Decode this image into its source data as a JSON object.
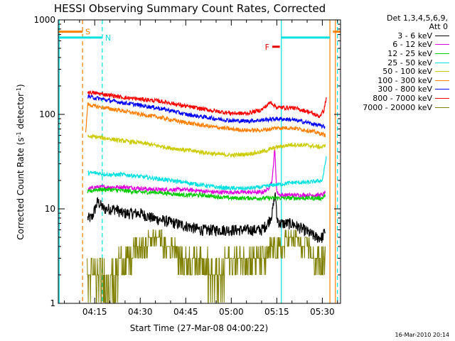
{
  "chart_data": {
    "type": "line",
    "title": "HESSI Observing Summary Count Rates, Corrected",
    "xlabel": "Start Time (27-Mar-08 04:00:22)",
    "ylabel": "Corrected Count Rate (s⁻¹ detector⁻¹)",
    "yscale": "log",
    "ylim": [
      1,
      1000
    ],
    "xlim": [
      3.0,
      96.0
    ],
    "x_unit": "minutes after 04:00:22",
    "y_tick_labels": [
      "1",
      "10",
      "100",
      "1000"
    ],
    "x_ticks": [
      {
        "label": "04:15",
        "value": 15
      },
      {
        "label": "04:30",
        "value": 30
      },
      {
        "label": "04:45",
        "value": 45
      },
      {
        "label": "05:00",
        "value": 60
      },
      {
        "label": "05:15",
        "value": 75
      },
      {
        "label": "05:30",
        "value": 90
      }
    ],
    "legend_header": [
      "Det 1,3,4,5,6,9,",
      "Att 0"
    ],
    "legend_placement": "right",
    "series": [
      {
        "name": "3 - 6 keV",
        "color": "#000000",
        "x": [
          12.7,
          14.0,
          16,
          18,
          20,
          22,
          24,
          26,
          28,
          30,
          34,
          38,
          42,
          46,
          50,
          54,
          58,
          62,
          66,
          70,
          72,
          73.5,
          74.5,
          75,
          76,
          78,
          80,
          84,
          88,
          90,
          91
        ],
        "y": [
          8,
          8,
          12,
          10,
          10,
          10,
          9,
          9,
          9,
          9,
          8,
          7.5,
          7,
          6.5,
          6,
          6,
          6,
          6,
          6,
          6,
          7,
          9,
          15,
          8,
          7,
          7,
          7,
          6,
          5,
          5,
          6
        ]
      },
      {
        "name": "6 - 12 keV",
        "color": "#e000e0",
        "x": [
          12.7,
          15,
          20,
          25,
          30,
          35,
          40,
          45,
          50,
          55,
          60,
          65,
          70,
          72,
          73.5,
          74.3,
          75,
          76,
          80,
          85,
          90,
          91
        ],
        "y": [
          16,
          17,
          17,
          17,
          16.5,
          16,
          16,
          16,
          15.5,
          15,
          15,
          15,
          15,
          16,
          20,
          45,
          15,
          14,
          14,
          14,
          14,
          15
        ]
      },
      {
        "name": "12 - 25 keV",
        "color": "#00cc00",
        "x": [
          12.7,
          15,
          20,
          25,
          30,
          35,
          40,
          45,
          50,
          55,
          60,
          65,
          70,
          74,
          75,
          80,
          85,
          90,
          91
        ],
        "y": [
          15,
          16,
          16,
          15.5,
          15,
          15,
          14.5,
          14,
          14,
          13.5,
          13,
          13,
          13,
          13,
          13,
          13,
          13,
          13,
          14
        ]
      },
      {
        "name": "25 - 50 keV",
        "color": "#00e0e0",
        "x": [
          12.7,
          15,
          20,
          25,
          30,
          35,
          40,
          45,
          50,
          55,
          60,
          65,
          70,
          74,
          75,
          80,
          85,
          90,
          91.5
        ],
        "y": [
          24,
          24,
          23,
          23,
          22,
          21,
          20,
          19,
          18,
          17,
          16.5,
          16.5,
          17,
          18,
          18,
          19,
          19,
          20,
          38
        ]
      },
      {
        "name": "50 - 100 keV",
        "color": "#cccc00",
        "x": [
          12.7,
          15,
          20,
          25,
          30,
          35,
          40,
          45,
          50,
          55,
          60,
          65,
          70,
          75,
          80,
          85,
          90,
          91
        ],
        "y": [
          58,
          58,
          55,
          52,
          50,
          47,
          44,
          42,
          40,
          38,
          37,
          38,
          40,
          45,
          48,
          47,
          45,
          48
        ]
      },
      {
        "name": "100 - 300 keV",
        "color": "#ff8000",
        "x": [
          12.0,
          12.7,
          15,
          20,
          25,
          30,
          35,
          40,
          45,
          50,
          55,
          60,
          65,
          70,
          75,
          80,
          85,
          90,
          91
        ],
        "y": [
          62,
          128,
          122,
          115,
          108,
          100,
          95,
          88,
          82,
          77,
          73,
          70,
          68,
          68,
          72,
          72,
          68,
          62,
          60
        ]
      },
      {
        "name": "300 - 800 keV",
        "color": "#0000ff",
        "x": [
          12.7,
          15,
          20,
          25,
          30,
          35,
          40,
          45,
          50,
          55,
          60,
          65,
          70,
          75,
          80,
          85,
          90,
          91
        ],
        "y": [
          155,
          150,
          140,
          132,
          125,
          118,
          110,
          100,
          95,
          90,
          86,
          85,
          87,
          90,
          88,
          82,
          75,
          73
        ]
      },
      {
        "name": "800 - 7000 keV",
        "color": "#ff0000",
        "x": [
          12.7,
          15,
          20,
          25,
          30,
          35,
          40,
          45,
          50,
          55,
          60,
          65,
          70,
          73,
          75,
          80,
          85,
          89,
          90.5,
          91.5
        ],
        "y": [
          172,
          168,
          160,
          150,
          145,
          140,
          132,
          122,
          115,
          108,
          103,
          102,
          112,
          135,
          118,
          118,
          108,
          95,
          110,
          160
        ]
      },
      {
        "name": "7000 - 20000 keV",
        "color": "#808000",
        "x": [
          12.5,
          15,
          20,
          25,
          30,
          35,
          40,
          45,
          50,
          55,
          60,
          65,
          70,
          75,
          80,
          85,
          88,
          91
        ],
        "y": [
          2,
          2,
          2,
          3,
          4,
          5,
          4,
          3,
          3,
          2,
          3,
          3,
          3,
          4,
          5,
          4,
          3,
          3
        ]
      }
    ],
    "vertical_markers": [
      {
        "label": "S",
        "color": "#ff8000",
        "x": 11.0,
        "style": "dashed"
      },
      {
        "label": "N",
        "color": "#00e0e0",
        "x": 17.5,
        "style": "dashed"
      },
      {
        "x": 3.3,
        "color": "#00e0e0",
        "style": "solid"
      },
      {
        "x": 76.5,
        "color": "#00e0e0",
        "style": "solid"
      },
      {
        "x": 92.5,
        "color": "#ff8000",
        "style": "solid"
      },
      {
        "x": 94.3,
        "color": "#ff8000",
        "style": "solid"
      },
      {
        "x": 95.0,
        "color": "#00e0e0",
        "style": "dashed"
      }
    ],
    "interval_bars": [
      {
        "label": "S",
        "color": "#ff8000",
        "y": 750,
        "segments": [
          [
            3.0,
            11.0
          ],
          [
            93.5,
            96.0
          ]
        ]
      },
      {
        "label": "N",
        "color": "#00e0e0",
        "y": 650,
        "segments": [
          [
            3.0,
            17.5
          ],
          [
            76.5,
            92.5
          ]
        ]
      },
      {
        "label": "F",
        "color": "#e00000",
        "y": 520,
        "segments": [
          [
            73.5,
            76.0
          ]
        ]
      }
    ]
  },
  "footer": "16-Mar-2010 20:14"
}
